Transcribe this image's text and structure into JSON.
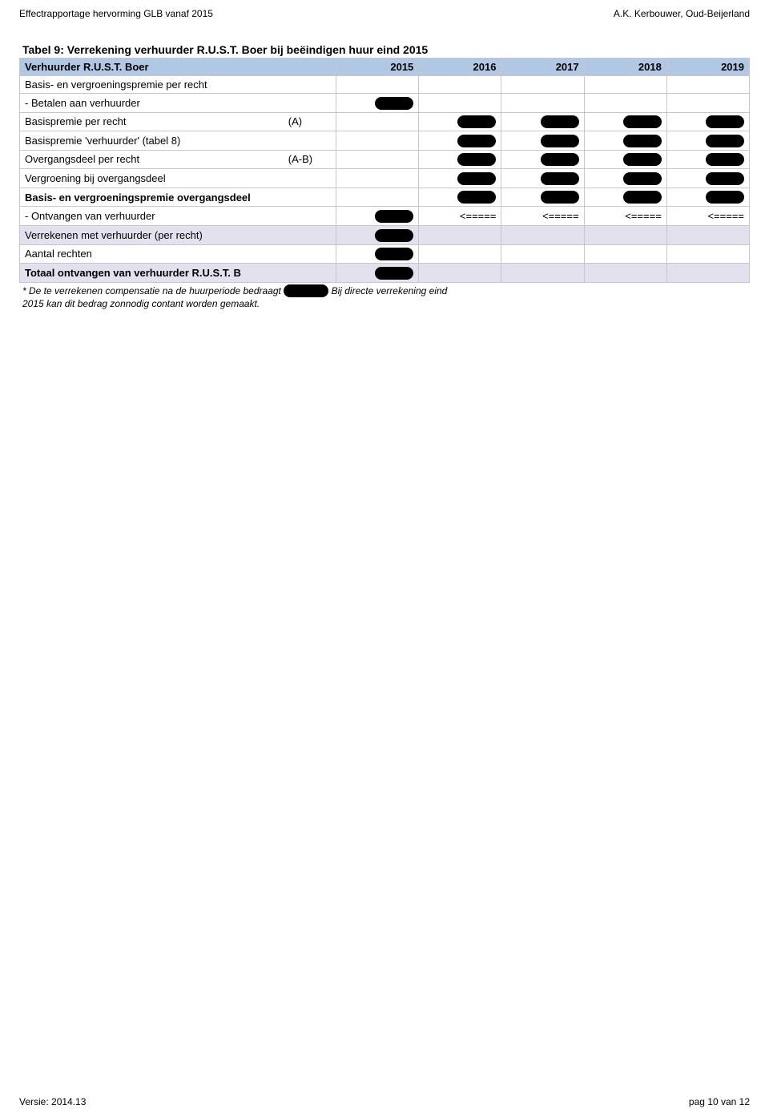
{
  "header": {
    "left": "Effectrapportage hervorming GLB vanaf 2015",
    "right": "A.K. Kerbouwer, Oud-Beijerland"
  },
  "table": {
    "title": "Tabel 9: Verrekening verhuurder R.U.S.T. Boer bij beëindigen huur eind 2015",
    "head_label": "Verhuurder R.U.S.T. Boer",
    "years": [
      "2015",
      "2016",
      "2017",
      "2018",
      "2019"
    ],
    "rows": [
      {
        "label": "Basis- en vergroeningspremie per recht",
        "sub": "",
        "bold": false,
        "shade": false,
        "cells": [
          {
            "t": ""
          },
          {
            "t": ""
          },
          {
            "t": ""
          },
          {
            "t": ""
          },
          {
            "t": ""
          }
        ]
      },
      {
        "label": "- Betalen aan verhuurder",
        "sub": "",
        "bold": false,
        "shade": false,
        "cells": [
          {
            "t": "",
            "r": true
          },
          {
            "t": ""
          },
          {
            "t": ""
          },
          {
            "t": ""
          },
          {
            "t": ""
          }
        ]
      },
      {
        "label": "Basispremie per recht",
        "sub": "(A)",
        "bold": false,
        "shade": false,
        "cells": [
          {
            "t": ""
          },
          {
            "t": "",
            "r": true
          },
          {
            "t": "",
            "r": true
          },
          {
            "t": "",
            "r": true
          },
          {
            "t": "",
            "r": true
          }
        ]
      },
      {
        "label": "Basispremie 'verhuurder' (tabel 8)",
        "sub": "",
        "bold": false,
        "shade": false,
        "cells": [
          {
            "t": ""
          },
          {
            "t": "",
            "r": true
          },
          {
            "t": "",
            "r": true
          },
          {
            "t": "",
            "r": true
          },
          {
            "t": "",
            "r": true
          }
        ]
      },
      {
        "label": "Overgangsdeel per recht",
        "sub": "(A-B)",
        "bold": false,
        "shade": false,
        "cells": [
          {
            "t": ""
          },
          {
            "t": "",
            "r": true
          },
          {
            "t": "",
            "r": true
          },
          {
            "t": "",
            "r": true
          },
          {
            "t": "",
            "r": true
          }
        ]
      },
      {
        "label": "Vergroening bij overgangsdeel",
        "sub": "",
        "bold": false,
        "shade": false,
        "cells": [
          {
            "t": ""
          },
          {
            "t": "",
            "r": true
          },
          {
            "t": "",
            "r": true
          },
          {
            "t": "",
            "r": true
          },
          {
            "t": "",
            "r": true
          }
        ]
      },
      {
        "label": "Basis- en vergroeningspremie overgangsdeel",
        "sub": "",
        "bold": true,
        "shade": false,
        "cells": [
          {
            "t": ""
          },
          {
            "t": "",
            "r": true
          },
          {
            "t": "",
            "r": true
          },
          {
            "t": "",
            "r": true
          },
          {
            "t": "",
            "r": true
          }
        ]
      },
      {
        "label": "- Ontvangen van verhuurder",
        "sub": "",
        "bold": false,
        "shade": false,
        "cells": [
          {
            "t": "",
            "r": true
          },
          {
            "t": "<====="
          },
          {
            "t": "<====="
          },
          {
            "t": "<====="
          },
          {
            "t": "<====="
          }
        ]
      },
      {
        "label": "Verrekenen met verhuurder (per recht)",
        "sub": "",
        "bold": false,
        "shade": true,
        "cells": [
          {
            "t": "",
            "r": true
          },
          {
            "t": ""
          },
          {
            "t": ""
          },
          {
            "t": ""
          },
          {
            "t": ""
          }
        ]
      },
      {
        "label": "Aantal rechten",
        "sub": "",
        "bold": false,
        "shade": false,
        "cells": [
          {
            "t": "",
            "r": true
          },
          {
            "t": ""
          },
          {
            "t": ""
          },
          {
            "t": ""
          },
          {
            "t": ""
          }
        ]
      },
      {
        "label": "Totaal ontvangen van verhuurder R.U.S.T. B",
        "sub": "",
        "bold": true,
        "shade": true,
        "cells": [
          {
            "t": "",
            "r": true
          },
          {
            "t": ""
          },
          {
            "t": ""
          },
          {
            "t": ""
          },
          {
            "t": ""
          }
        ]
      }
    ],
    "footnote_pre": "* De te verrekenen compensatie na de huurperiode bedraagt",
    "footnote_post": "Bij directe verrekening eind",
    "footnote_line2": "2015 kan dit bedrag zonnodig contant worden gemaakt."
  },
  "footer": {
    "left": "Versie: 2014.13",
    "right": "pag 10 van 12"
  }
}
